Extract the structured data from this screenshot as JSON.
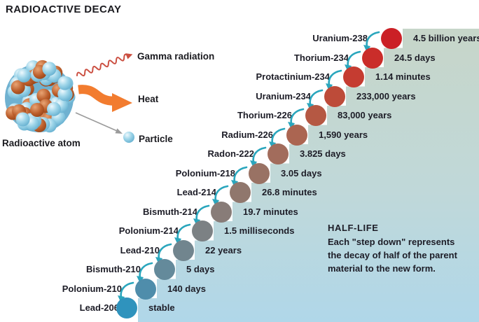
{
  "title": "RADIOACTIVE DECAY",
  "atom": {
    "label": "Radioactive atom"
  },
  "legend": {
    "gamma": {
      "label": "Gamma radiation",
      "icon": "gamma-wave-icon",
      "color": "#cb4f41"
    },
    "heat": {
      "label": "Heat",
      "icon": "heat-arrow-icon",
      "color": "#f27c2f"
    },
    "particle": {
      "label": "Particle",
      "icon": "particle-sphere-icon",
      "color": "#9a9a9a"
    }
  },
  "halflife_note": {
    "title": "HALF-LIFE",
    "lines": [
      "Each \"step down\" represents",
      "the decay of half of the parent",
      "material to the new form."
    ]
  },
  "colors": {
    "stair_top": "#c7d6c9",
    "stair_mid": "#c0d8d9",
    "stair_bottom": "#b0d7e9",
    "decay_arrow": "#2aa6bd",
    "text": "#1d1d27",
    "atom_blue": "#7cc0dd",
    "atom_brown": "#b55a2b"
  },
  "chain": [
    {
      "element": "Uranium-238",
      "half_life": "4.5 billion years",
      "color": "#cb2026"
    },
    {
      "element": "Thorium-234",
      "half_life": "24.5 days",
      "color": "#ca2d2a"
    },
    {
      "element": "Protactinium-234",
      "half_life": "1.14 minutes",
      "color": "#c53c31"
    },
    {
      "element": "Uranium-234",
      "half_life": "233,000 years",
      "color": "#bd4b39"
    },
    {
      "element": "Thorium-226",
      "half_life": "83,000 years",
      "color": "#b55843"
    },
    {
      "element": "Radium-226",
      "half_life": "1,590 years",
      "color": "#ab6551"
    },
    {
      "element": "Radon-222",
      "half_life": "3.825 days",
      "color": "#a26c5c"
    },
    {
      "element": "Polonium-218",
      "half_life": "3.05 days",
      "color": "#997264"
    },
    {
      "element": "Lead-214",
      "half_life": "26.8 minutes",
      "color": "#90776d"
    },
    {
      "element": "Bismuth-214",
      "half_life": "19.7 minutes",
      "color": "#887c78"
    },
    {
      "element": "Polonium-214",
      "half_life": "1.5 milliseconds",
      "color": "#7c8184"
    },
    {
      "element": "Lead-210",
      "half_life": "22 years",
      "color": "#71858e"
    },
    {
      "element": "Bismuth-210",
      "half_life": "5 days",
      "color": "#648a9b"
    },
    {
      "element": "Polonium-210",
      "half_life": "140 days",
      "color": "#4f8dab"
    },
    {
      "element": "Lead-206",
      "half_life": "stable",
      "color": "#2f93bd"
    }
  ]
}
